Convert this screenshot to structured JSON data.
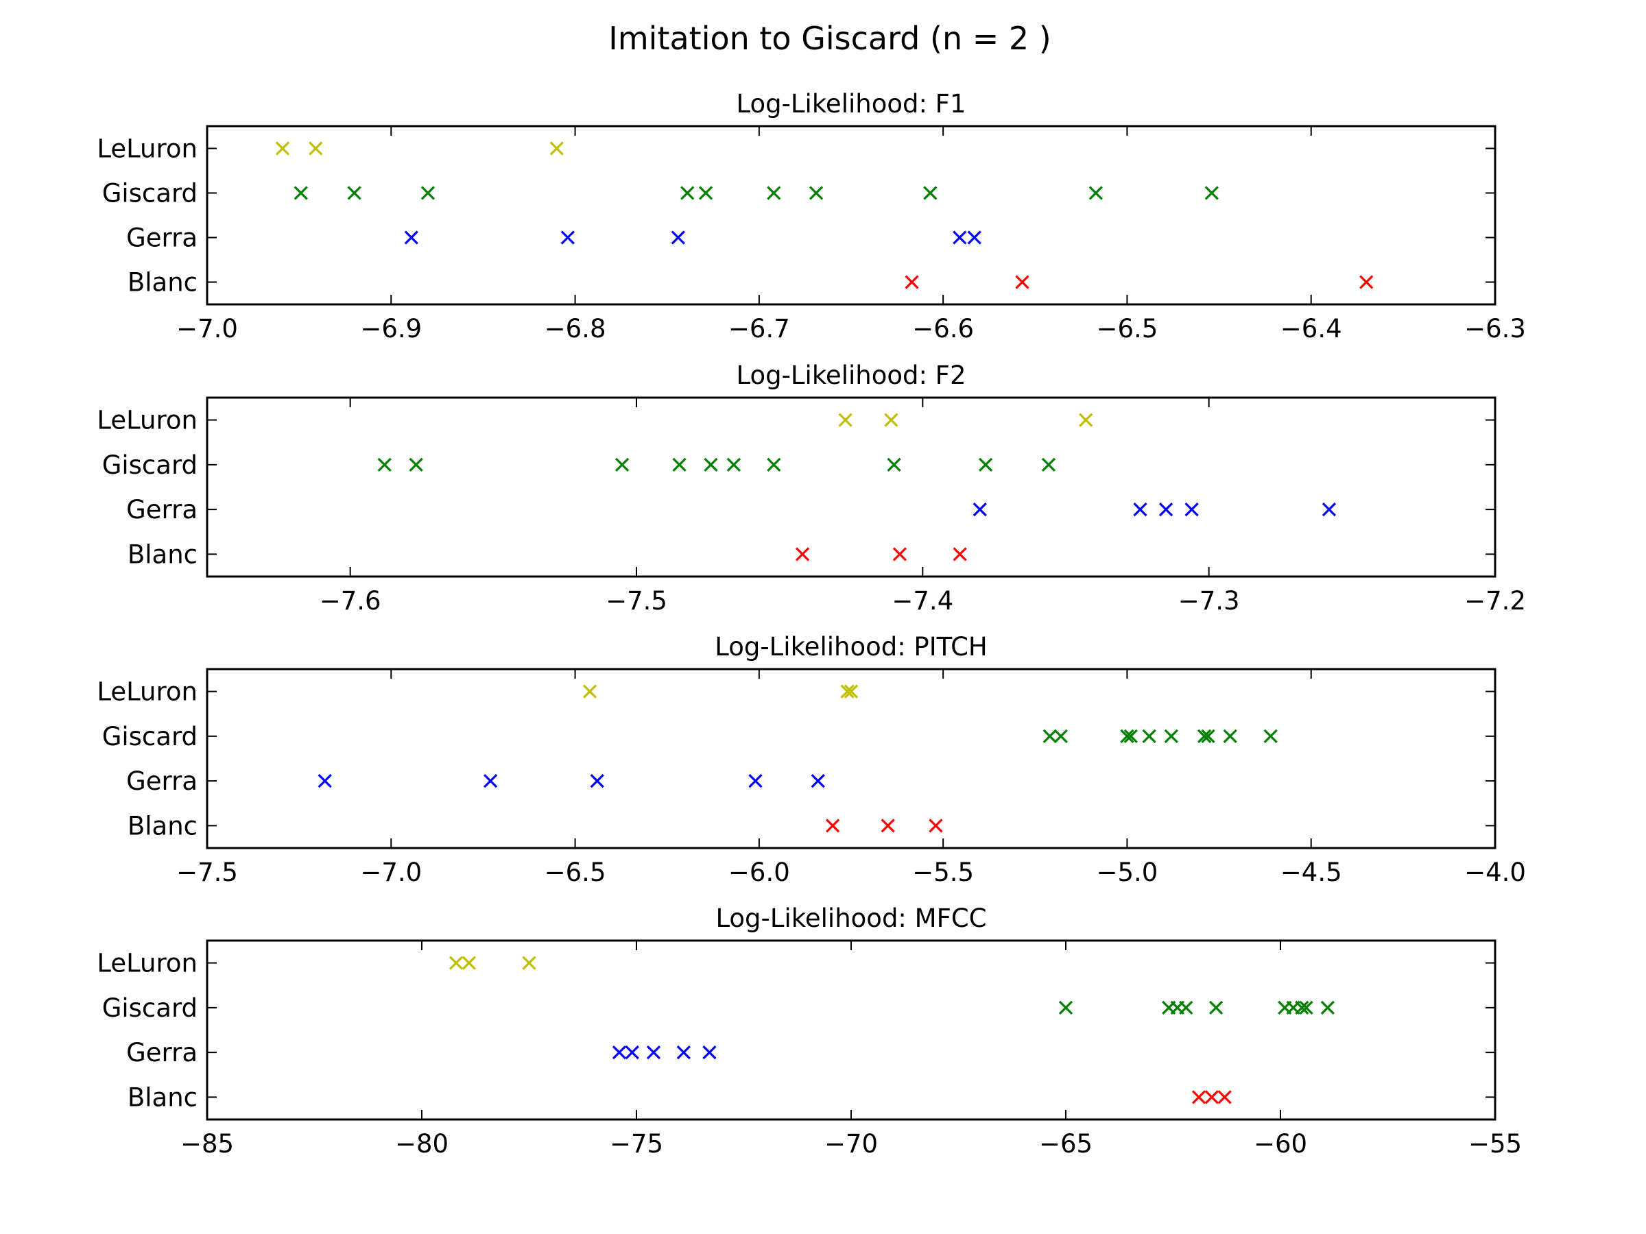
{
  "chart_data": {
    "title": "Imitation to Giscard (n = 2 )",
    "type": "scatter",
    "panels": [
      {
        "title": "Log-Likelihood: F1",
        "xlim": [
          -7.0,
          -6.3
        ],
        "xticks": [
          -7.0,
          -6.9,
          -6.8,
          -6.7,
          -6.6,
          -6.5,
          -6.4,
          -6.3
        ],
        "xtick_labels": [
          "−7.0",
          "−6.9",
          "−6.8",
          "−6.7",
          "−6.6",
          "−6.5",
          "−6.4",
          "−6.3"
        ],
        "categories": [
          "LeLuron",
          "Giscard",
          "Gerra",
          "Blanc"
        ],
        "series": [
          {
            "name": "LeLuron",
            "color": "#bfbf00",
            "x": [
              -6.959,
              -6.941,
              -6.81
            ]
          },
          {
            "name": "Giscard",
            "color": "#008000",
            "x": [
              -6.949,
              -6.92,
              -6.88,
              -6.739,
              -6.729,
              -6.692,
              -6.669,
              -6.607,
              -6.517,
              -6.454
            ]
          },
          {
            "name": "Gerra",
            "color": "#0000ff",
            "x": [
              -6.889,
              -6.804,
              -6.744,
              -6.591,
              -6.583
            ]
          },
          {
            "name": "Blanc",
            "color": "#ff0000",
            "x": [
              -6.617,
              -6.557,
              -6.37
            ]
          }
        ]
      },
      {
        "title": "Log-Likelihood: F2",
        "xlim": [
          -7.65,
          -7.2
        ],
        "xticks": [
          -7.6,
          -7.5,
          -7.4,
          -7.3,
          -7.2
        ],
        "xtick_labels": [
          "−7.6",
          "−7.5",
          "−7.4",
          "−7.3",
          "−7.2"
        ],
        "categories": [
          "LeLuron",
          "Giscard",
          "Gerra",
          "Blanc"
        ],
        "series": [
          {
            "name": "LeLuron",
            "color": "#bfbf00",
            "x": [
              -7.427,
              -7.411,
              -7.343
            ]
          },
          {
            "name": "Giscard",
            "color": "#008000",
            "x": [
              -7.588,
              -7.577,
              -7.505,
              -7.485,
              -7.474,
              -7.466,
              -7.452,
              -7.41,
              -7.378,
              -7.356
            ]
          },
          {
            "name": "Gerra",
            "color": "#0000ff",
            "x": [
              -7.38,
              -7.324,
              -7.315,
              -7.306,
              -7.258
            ]
          },
          {
            "name": "Blanc",
            "color": "#ff0000",
            "x": [
              -7.442,
              -7.408,
              -7.387
            ]
          }
        ]
      },
      {
        "title": "Log-Likelihood: PITCH",
        "xlim": [
          -7.5,
          -4.0
        ],
        "xticks": [
          -7.5,
          -7.0,
          -6.5,
          -6.0,
          -5.5,
          -5.0,
          -4.5,
          -4.0
        ],
        "xtick_labels": [
          "−7.5",
          "−7.0",
          "−6.5",
          "−6.0",
          "−5.5",
          "−5.0",
          "−4.5",
          "−4.0"
        ],
        "categories": [
          "LeLuron",
          "Giscard",
          "Gerra",
          "Blanc"
        ],
        "series": [
          {
            "name": "LeLuron",
            "color": "#bfbf00",
            "x": [
              -6.46,
              -5.76,
              -5.75
            ]
          },
          {
            "name": "Giscard",
            "color": "#008000",
            "x": [
              -5.21,
              -5.18,
              -5.0,
              -4.99,
              -4.94,
              -4.88,
              -4.79,
              -4.78,
              -4.72,
              -4.61
            ]
          },
          {
            "name": "Gerra",
            "color": "#0000ff",
            "x": [
              -7.18,
              -6.73,
              -6.44,
              -6.01,
              -5.84
            ]
          },
          {
            "name": "Blanc",
            "color": "#ff0000",
            "x": [
              -5.8,
              -5.65,
              -5.52
            ]
          }
        ]
      },
      {
        "title": "Log-Likelihood: MFCC",
        "xlim": [
          -85,
          -55
        ],
        "xticks": [
          -85,
          -80,
          -75,
          -70,
          -65,
          -60,
          -55
        ],
        "xtick_labels": [
          "−85",
          "−80",
          "−75",
          "−70",
          "−65",
          "−60",
          "−55"
        ],
        "categories": [
          "LeLuron",
          "Giscard",
          "Gerra",
          "Blanc"
        ],
        "series": [
          {
            "name": "LeLuron",
            "color": "#bfbf00",
            "x": [
              -79.2,
              -78.9,
              -77.5
            ]
          },
          {
            "name": "Giscard",
            "color": "#008000",
            "x": [
              -65.0,
              -62.6,
              -62.4,
              -62.2,
              -61.5,
              -59.9,
              -59.7,
              -59.5,
              -59.4,
              -58.9
            ]
          },
          {
            "name": "Gerra",
            "color": "#0000ff",
            "x": [
              -75.4,
              -75.1,
              -74.6,
              -73.9,
              -73.3
            ]
          },
          {
            "name": "Blanc",
            "color": "#ff0000",
            "x": [
              -61.9,
              -61.6,
              -61.3
            ]
          }
        ]
      }
    ]
  }
}
